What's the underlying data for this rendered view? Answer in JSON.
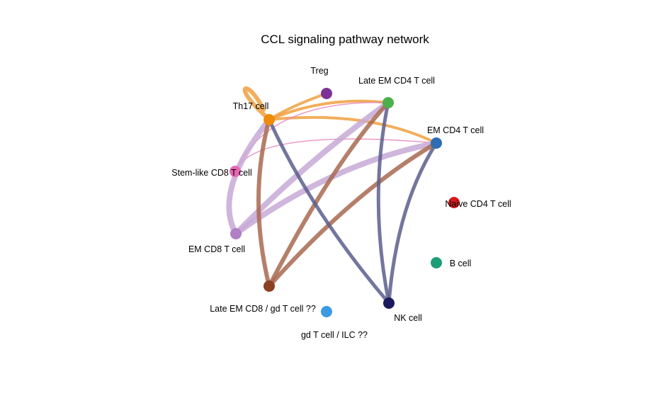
{
  "title": "CCL signaling pathway network",
  "nodes": [
    {
      "id": "treg",
      "label": "Treg",
      "color": "#7b3294"
    },
    {
      "id": "late_em_cd4",
      "label": "Late EM CD4 T cell",
      "color": "#4daf4a"
    },
    {
      "id": "th17",
      "label": "Th17 cell",
      "color": "#f08a0b"
    },
    {
      "id": "em_cd4",
      "label": "EM CD4 T cell",
      "color": "#2e6db4"
    },
    {
      "id": "stem_cd8",
      "label": "Stem-like CD8 T cell",
      "color": "#e667b4"
    },
    {
      "id": "naive_cd4",
      "label": "Naive CD4 T cell",
      "color": "#d7191c"
    },
    {
      "id": "em_cd8",
      "label": "EM CD8 T cell",
      "color": "#b07fc4"
    },
    {
      "id": "b_cell",
      "label": "B cell",
      "color": "#1b9e77"
    },
    {
      "id": "late_em_cd8",
      "label": "Late EM CD8 / gd T cell ??",
      "color": "#8b4020"
    },
    {
      "id": "nk",
      "label": "NK cell",
      "color": "#1a1a5e"
    },
    {
      "id": "gd_ilc",
      "label": "gd T cell / ILC ??",
      "color": "#3b9ae1"
    }
  ],
  "edges": [
    {
      "from": "th17",
      "to": "th17",
      "color": "#f0a040",
      "weight": 6
    },
    {
      "from": "th17",
      "to": "treg",
      "color": "#f0a040",
      "weight": 4
    },
    {
      "from": "th17",
      "to": "late_em_cd4",
      "color": "#f0a040",
      "weight": 4
    },
    {
      "from": "th17",
      "to": "em_cd4",
      "color": "#f0a040",
      "weight": 4
    },
    {
      "from": "stem_cd8",
      "to": "late_em_cd4",
      "color": "#e687c0",
      "weight": 1.5
    },
    {
      "from": "stem_cd8",
      "to": "em_cd4",
      "color": "#e687c0",
      "weight": 1.5
    },
    {
      "from": "em_cd8",
      "to": "th17",
      "color": "#c7a9d6",
      "weight": 8
    },
    {
      "from": "em_cd8",
      "to": "late_em_cd4",
      "color": "#c7a9d6",
      "weight": 8
    },
    {
      "from": "em_cd8",
      "to": "em_cd4",
      "color": "#c7a9d6",
      "weight": 8
    },
    {
      "from": "late_em_cd8",
      "to": "th17",
      "color": "#a86850",
      "weight": 6
    },
    {
      "from": "late_em_cd8",
      "to": "late_em_cd4",
      "color": "#a86850",
      "weight": 6
    },
    {
      "from": "late_em_cd8",
      "to": "em_cd4",
      "color": "#a86850",
      "weight": 6
    },
    {
      "from": "nk",
      "to": "th17",
      "color": "#5a5e8c",
      "weight": 5
    },
    {
      "from": "nk",
      "to": "late_em_cd4",
      "color": "#5a5e8c",
      "weight": 5
    },
    {
      "from": "nk",
      "to": "em_cd4",
      "color": "#5a5e8c",
      "weight": 5
    }
  ]
}
